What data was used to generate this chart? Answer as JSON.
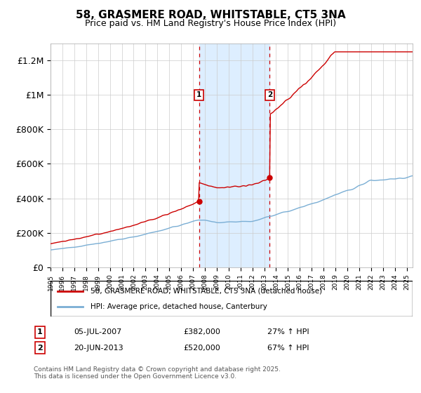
{
  "title": "58, GRASMERE ROAD, WHITSTABLE, CT5 3NA",
  "subtitle": "Price paid vs. HM Land Registry's House Price Index (HPI)",
  "ylabel_ticks": [
    "£0",
    "£200K",
    "£400K",
    "£600K",
    "£800K",
    "£1M",
    "£1.2M"
  ],
  "ytick_values": [
    0,
    200000,
    400000,
    600000,
    800000,
    1000000,
    1200000
  ],
  "ylim": [
    0,
    1300000
  ],
  "xlim_start": 1995.0,
  "xlim_end": 2025.5,
  "sale1_date": 2007.51,
  "sale1_price": 382000,
  "sale1_label": "1",
  "sale2_date": 2013.47,
  "sale2_price": 520000,
  "sale2_label": "2",
  "red_line_color": "#cc0000",
  "blue_line_color": "#7aaed4",
  "shade_color": "#ddeeff",
  "vline_color": "#cc0000",
  "grid_color": "#cccccc",
  "legend1_label": "58, GRASMERE ROAD, WHITSTABLE, CT5 3NA (detached house)",
  "legend2_label": "HPI: Average price, detached house, Canterbury",
  "footnote": "Contains HM Land Registry data © Crown copyright and database right 2025.\nThis data is licensed under the Open Government Licence v3.0.",
  "title_fontsize": 11,
  "subtitle_fontsize": 9,
  "axis_fontsize": 9,
  "background_color": "#ffffff",
  "num_points": 500
}
